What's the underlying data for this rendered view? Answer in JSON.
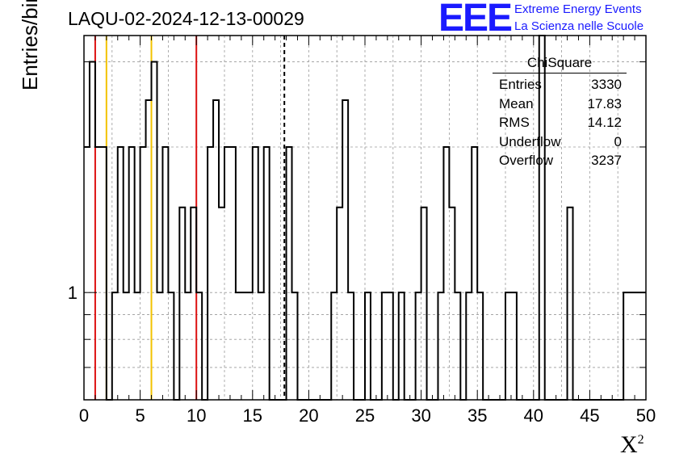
{
  "header": {
    "title": "LAQU-02-2024-12-13-00029",
    "logo_text": "EEE",
    "logo_line1": "Extreme Energy Events",
    "logo_line2": "La Scienza nelle Scuole"
  },
  "stats_box": {
    "title": "ChiSquare",
    "rows": [
      {
        "label": "Entries",
        "value": "3330"
      },
      {
        "label": "Mean",
        "value": "17.83"
      },
      {
        "label": "RMS",
        "value": "14.12"
      },
      {
        "label": "Underflow",
        "value": "0"
      },
      {
        "label": "Overflow",
        "value": "3237"
      }
    ]
  },
  "colors": {
    "logo_blue": "#1a1aff",
    "red_line": "#dd1111",
    "yellow_line": "#f2c200",
    "histogram": "#000000",
    "grid": "#9a9a9a"
  },
  "chart_data": {
    "type": "bar",
    "title": "LAQU-02-2024-12-13-00029",
    "xlabel": "X",
    "xlabel_superscript": "2",
    "ylabel": "Entries/bin",
    "xlim": [
      0,
      50
    ],
    "ylim": [
      0.6,
      3.4
    ],
    "y_scale": "log",
    "grid": true,
    "bin_width": 0.5,
    "x_ticks": [
      "0",
      "5",
      "10",
      "15",
      "20",
      "25",
      "30",
      "35",
      "40",
      "45",
      "50"
    ],
    "y_tick_labels": [
      {
        "value": 1,
        "label": "1"
      }
    ],
    "values": [
      2,
      3,
      3,
      3,
      0,
      1,
      2,
      0,
      2,
      0,
      2,
      0,
      2,
      3,
      2,
      3,
      0,
      0,
      0,
      0,
      0,
      1.5,
      1.5,
      0,
      0,
      1.5,
      2,
      2,
      0,
      0,
      0,
      0,
      2,
      3,
      0,
      0,
      0,
      0,
      0,
      0,
      0,
      2,
      0,
      0,
      0,
      0,
      2,
      0,
      0,
      0,
      0,
      0,
      2,
      0,
      0,
      0,
      0,
      0,
      0,
      0,
      0,
      0,
      0,
      0,
      0,
      0,
      0,
      0,
      0,
      0,
      0,
      0,
      0,
      0,
      0,
      0,
      0,
      0,
      0,
      0,
      0,
      4,
      0,
      0,
      0,
      0,
      1.5,
      0,
      0,
      0,
      0,
      0,
      0,
      0,
      0,
      0,
      0,
      0,
      1,
      1
    ],
    "bins": [
      {
        "x0": 0.0,
        "v": 2
      },
      {
        "x0": 0.5,
        "v": 3
      },
      {
        "x0": 1.0,
        "v": 2
      },
      {
        "x0": 1.5,
        "v": 2
      },
      {
        "x0": 2.0,
        "v": 0
      },
      {
        "x0": 2.5,
        "v": 1
      },
      {
        "x0": 3.0,
        "v": 2
      },
      {
        "x0": 3.5,
        "v": 1
      },
      {
        "x0": 4.0,
        "v": 2
      },
      {
        "x0": 4.5,
        "v": 1
      },
      {
        "x0": 5.0,
        "v": 2
      },
      {
        "x0": 5.5,
        "v": 2.5
      },
      {
        "x0": 6.0,
        "v": 3
      },
      {
        "x0": 6.5,
        "v": 1
      },
      {
        "x0": 7.0,
        "v": 2
      },
      {
        "x0": 7.5,
        "v": 1
      },
      {
        "x0": 8.0,
        "v": 0
      },
      {
        "x0": 8.5,
        "v": 1.5
      },
      {
        "x0": 9.0,
        "v": 1
      },
      {
        "x0": 9.5,
        "v": 1.5
      },
      {
        "x0": 10.0,
        "v": 1
      },
      {
        "x0": 10.5,
        "v": 0
      },
      {
        "x0": 11.0,
        "v": 2
      },
      {
        "x0": 11.5,
        "v": 2.5
      },
      {
        "x0": 12.0,
        "v": 1.5
      },
      {
        "x0": 12.5,
        "v": 2
      },
      {
        "x0": 13.0,
        "v": 2
      },
      {
        "x0": 13.5,
        "v": 1
      },
      {
        "x0": 14.0,
        "v": 1
      },
      {
        "x0": 14.5,
        "v": 1
      },
      {
        "x0": 15.0,
        "v": 2
      },
      {
        "x0": 15.5,
        "v": 1
      },
      {
        "x0": 16.0,
        "v": 2
      },
      {
        "x0": 16.5,
        "v": 0
      },
      {
        "x0": 17.0,
        "v": 0
      },
      {
        "x0": 17.5,
        "v": 0
      },
      {
        "x0": 18.0,
        "v": 2
      },
      {
        "x0": 18.5,
        "v": 1
      },
      {
        "x0": 19.0,
        "v": 0
      },
      {
        "x0": 19.5,
        "v": 0
      },
      {
        "x0": 20.0,
        "v": 0
      },
      {
        "x0": 20.5,
        "v": 0
      },
      {
        "x0": 21.0,
        "v": 0
      },
      {
        "x0": 21.5,
        "v": 0
      },
      {
        "x0": 22.0,
        "v": 1
      },
      {
        "x0": 22.5,
        "v": 1.5
      },
      {
        "x0": 23.0,
        "v": 2.5
      },
      {
        "x0": 23.5,
        "v": 1
      },
      {
        "x0": 24.0,
        "v": 0
      },
      {
        "x0": 24.5,
        "v": 0
      },
      {
        "x0": 25.0,
        "v": 1
      },
      {
        "x0": 25.5,
        "v": 0
      },
      {
        "x0": 26.0,
        "v": 0
      },
      {
        "x0": 26.5,
        "v": 1
      },
      {
        "x0": 27.0,
        "v": 1
      },
      {
        "x0": 27.5,
        "v": 0
      },
      {
        "x0": 28.0,
        "v": 1
      },
      {
        "x0": 28.5,
        "v": 0
      },
      {
        "x0": 29.0,
        "v": 0
      },
      {
        "x0": 29.5,
        "v": 1
      },
      {
        "x0": 30.0,
        "v": 1.5
      },
      {
        "x0": 30.5,
        "v": 0
      },
      {
        "x0": 31.0,
        "v": 0
      },
      {
        "x0": 31.5,
        "v": 1
      },
      {
        "x0": 32.0,
        "v": 2
      },
      {
        "x0": 32.5,
        "v": 1.5
      },
      {
        "x0": 33.0,
        "v": 1
      },
      {
        "x0": 33.5,
        "v": 0
      },
      {
        "x0": 34.0,
        "v": 1
      },
      {
        "x0": 34.5,
        "v": 2
      },
      {
        "x0": 35.0,
        "v": 1
      },
      {
        "x0": 35.5,
        "v": 0
      },
      {
        "x0": 36.0,
        "v": 0
      },
      {
        "x0": 36.5,
        "v": 0
      },
      {
        "x0": 37.0,
        "v": 0
      },
      {
        "x0": 37.5,
        "v": 1
      },
      {
        "x0": 38.0,
        "v": 1
      },
      {
        "x0": 38.5,
        "v": 0
      },
      {
        "x0": 39.0,
        "v": 0
      },
      {
        "x0": 39.5,
        "v": 0
      },
      {
        "x0": 40.0,
        "v": 0
      },
      {
        "x0": 40.5,
        "v": 4
      },
      {
        "x0": 41.0,
        "v": 0
      },
      {
        "x0": 41.5,
        "v": 0
      },
      {
        "x0": 42.0,
        "v": 0
      },
      {
        "x0": 42.5,
        "v": 0
      },
      {
        "x0": 43.0,
        "v": 1.5
      },
      {
        "x0": 43.5,
        "v": 0
      },
      {
        "x0": 44.0,
        "v": 0
      },
      {
        "x0": 44.5,
        "v": 0
      },
      {
        "x0": 45.0,
        "v": 0
      },
      {
        "x0": 45.5,
        "v": 0
      },
      {
        "x0": 46.0,
        "v": 0
      },
      {
        "x0": 46.5,
        "v": 0
      },
      {
        "x0": 47.0,
        "v": 0
      },
      {
        "x0": 47.5,
        "v": 0
      },
      {
        "x0": 48.0,
        "v": 1
      },
      {
        "x0": 48.5,
        "v": 1
      },
      {
        "x0": 49.0,
        "v": 1
      },
      {
        "x0": 49.5,
        "v": 1
      }
    ],
    "vertical_markers": [
      {
        "x": 1,
        "color": "red",
        "style": "solid"
      },
      {
        "x": 2,
        "color": "yellow",
        "style": "solid"
      },
      {
        "x": 6,
        "color": "yellow",
        "style": "solid"
      },
      {
        "x": 10,
        "color": "red",
        "style": "solid"
      },
      {
        "x": 17.83,
        "color": "black",
        "style": "dashed"
      }
    ]
  }
}
